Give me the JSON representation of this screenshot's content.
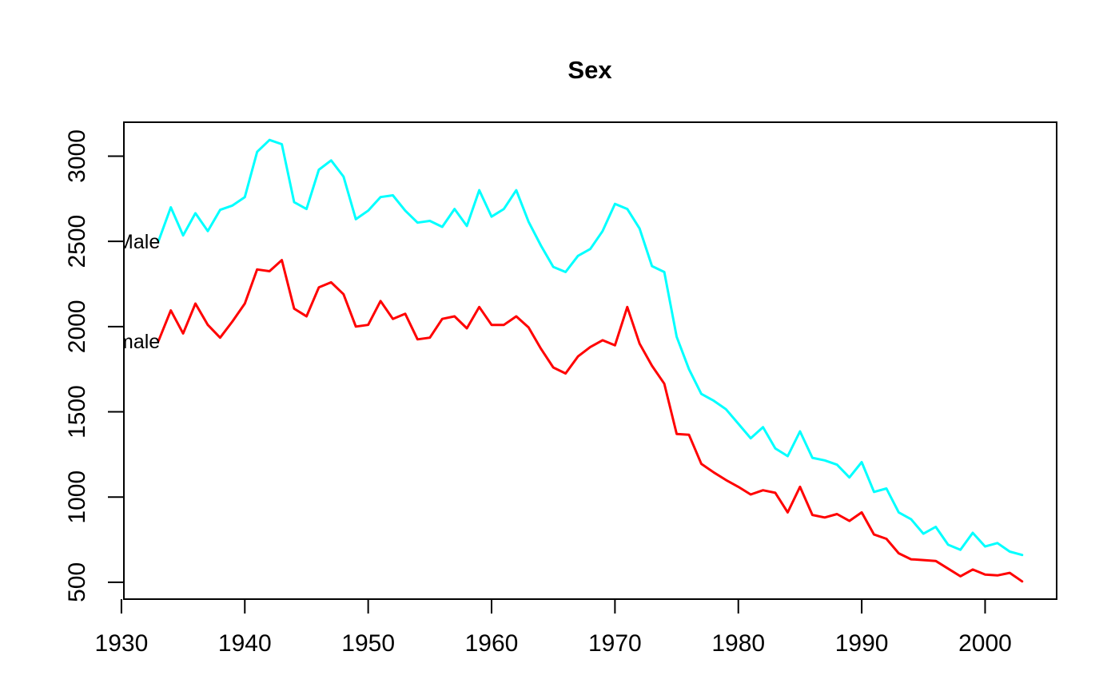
{
  "figure": {
    "title": "Sex"
  },
  "chart_data": {
    "type": "line",
    "title": "Sex",
    "xlabel": "",
    "ylabel": "",
    "grid": false,
    "legend_position": "inline-labels-at-line-start",
    "background_color": "#FFFFFF",
    "axis_color": "#000000",
    "text_color": "#000000",
    "xlim": [
      1930.2,
      2005.8
    ],
    "ylim": [
      401,
      3199
    ],
    "x_ticks": [
      1930,
      1940,
      1950,
      1960,
      1970,
      1980,
      1990,
      2000
    ],
    "y_ticks": [
      500,
      1000,
      1500,
      2000,
      2500,
      3000
    ],
    "x": [
      1933,
      1934,
      1935,
      1936,
      1937,
      1938,
      1939,
      1940,
      1941,
      1942,
      1943,
      1944,
      1945,
      1946,
      1947,
      1948,
      1949,
      1950,
      1951,
      1952,
      1953,
      1954,
      1955,
      1956,
      1957,
      1958,
      1959,
      1960,
      1961,
      1962,
      1963,
      1964,
      1965,
      1966,
      1967,
      1968,
      1969,
      1970,
      1971,
      1972,
      1973,
      1974,
      1975,
      1976,
      1977,
      1978,
      1979,
      1980,
      1981,
      1982,
      1983,
      1984,
      1985,
      1986,
      1987,
      1988,
      1989,
      1990,
      1991,
      1992,
      1993,
      1994,
      1995,
      1996,
      1997,
      1998,
      1999,
      2000,
      2001,
      2002,
      2003
    ],
    "series": [
      {
        "name": "Male",
        "color": "#00FFFF",
        "values": [
          2500,
          2700,
          2535,
          2665,
          2560,
          2685,
          2710,
          2760,
          3025,
          3095,
          3070,
          2730,
          2690,
          2920,
          2975,
          2880,
          2630,
          2680,
          2760,
          2770,
          2680,
          2610,
          2620,
          2585,
          2690,
          2590,
          2800,
          2645,
          2690,
          2800,
          2615,
          2475,
          2350,
          2320,
          2415,
          2455,
          2560,
          2720,
          2690,
          2575,
          2355,
          2320,
          1940,
          1750,
          1605,
          1565,
          1515,
          1430,
          1345,
          1410,
          1285,
          1240,
          1385,
          1230,
          1215,
          1190,
          1115,
          1205,
          1030,
          1050,
          910,
          870,
          785,
          825,
          720,
          690,
          790,
          710,
          730,
          680,
          660
        ]
      },
      {
        "name": "Female",
        "color": "#FF0000",
        "values": [
          1915,
          2095,
          1960,
          2135,
          2010,
          1935,
          2030,
          2135,
          2335,
          2325,
          2390,
          2105,
          2060,
          2230,
          2260,
          2190,
          2000,
          2010,
          2150,
          2045,
          2075,
          1925,
          1935,
          2045,
          2060,
          1990,
          2115,
          2010,
          2010,
          2060,
          1995,
          1870,
          1760,
          1725,
          1825,
          1880,
          1920,
          1890,
          2115,
          1900,
          1770,
          1665,
          1370,
          1365,
          1195,
          1145,
          1100,
          1060,
          1015,
          1040,
          1025,
          910,
          1060,
          895,
          880,
          900,
          860,
          910,
          780,
          755,
          670,
          635,
          630,
          625,
          580,
          535,
          575,
          545,
          540,
          555,
          505
        ]
      }
    ]
  }
}
